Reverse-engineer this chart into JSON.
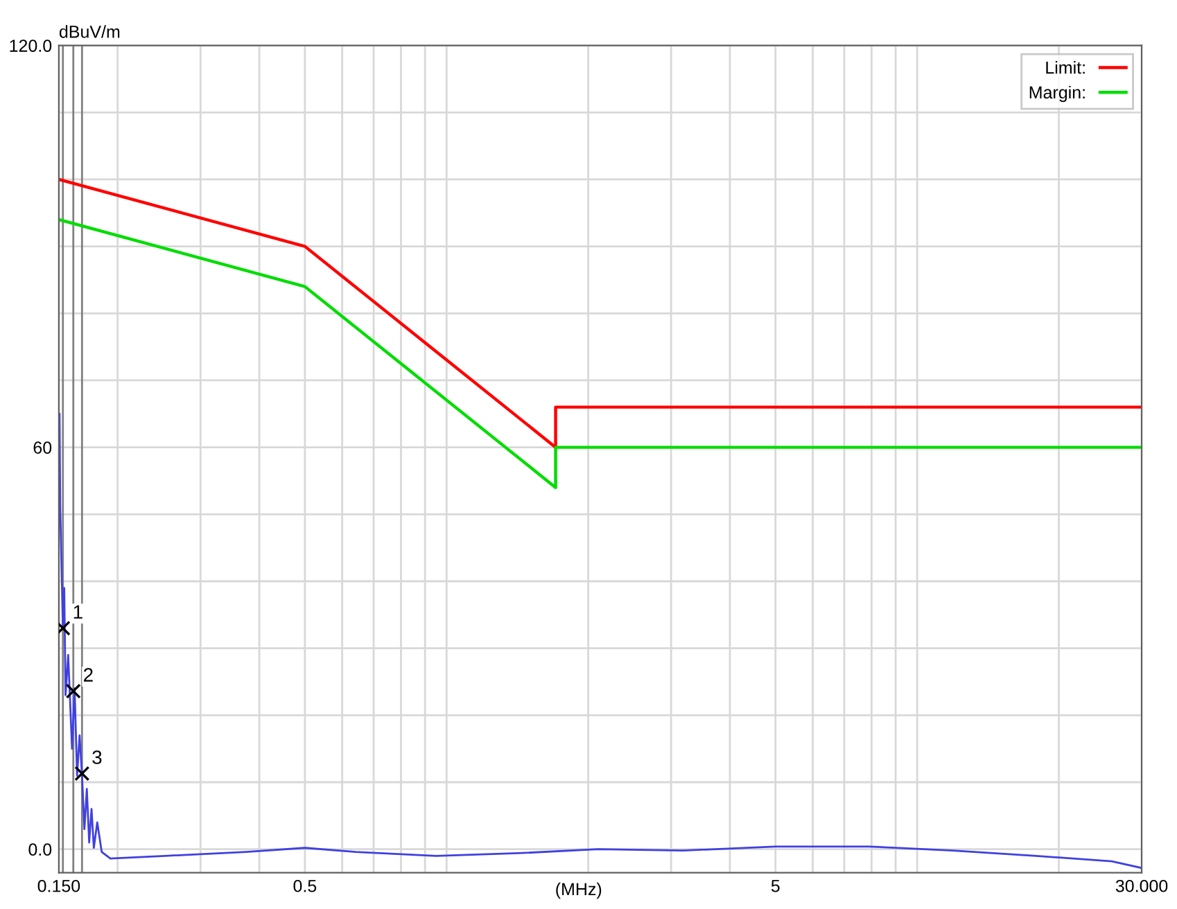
{
  "chart_data": {
    "type": "line",
    "xlabel": "(MHz)",
    "ylabel": "dBuV/m",
    "log": "x",
    "grid": true,
    "legend": "top right",
    "xlim": [
      0.15,
      30
    ],
    "ylim": [
      -3.5,
      120
    ],
    "xticks": [
      {
        "value": 0.15,
        "label": "0.150"
      },
      {
        "value": 0.2,
        "label": null
      },
      {
        "value": 0.3,
        "label": null
      },
      {
        "value": 0.4,
        "label": null
      },
      0.5,
      {
        "value": 0.6,
        "label": null
      },
      {
        "value": 0.7,
        "label": null
      },
      {
        "value": 0.8,
        "label": null
      },
      {
        "value": 0.9,
        "label": null
      },
      {
        "value": 1,
        "label": null
      },
      {
        "value": 2,
        "label": null
      },
      {
        "value": 3,
        "label": null
      },
      {
        "value": 4,
        "label": null
      },
      5,
      {
        "value": 6,
        "label": null
      },
      {
        "value": 7,
        "label": null
      },
      {
        "value": 8,
        "label": null
      },
      {
        "value": 9,
        "label": null
      },
      {
        "value": 10,
        "label": null
      },
      {
        "value": 20,
        "label": null
      },
      {
        "value": 30,
        "label": "30.000"
      }
    ],
    "yticks": [
      {
        "value": 0,
        "label": "0.0"
      },
      {
        "value": 10,
        "label": null
      },
      {
        "value": 20,
        "label": null
      },
      {
        "value": 30,
        "label": null
      },
      {
        "value": 40,
        "label": null
      },
      {
        "value": 50,
        "label": null
      },
      60,
      {
        "value": 70,
        "label": null
      },
      {
        "value": 80,
        "label": null
      },
      {
        "value": 90,
        "label": null
      },
      {
        "value": 100,
        "label": null
      },
      {
        "value": 110,
        "label": null
      },
      {
        "value": 120,
        "label": "120.0"
      }
    ],
    "series": [
      {
        "name": "Limit:",
        "color": "#ff0000",
        "x": [
          0.15,
          0.5,
          1.705,
          1.705,
          30
        ],
        "values": [
          100,
          90,
          60,
          66,
          66
        ]
      },
      {
        "name": "Margin:",
        "color": "#00dd00",
        "x": [
          0.15,
          0.5,
          1.705,
          1.705,
          30
        ],
        "values": [
          94,
          84,
          54,
          60,
          60
        ]
      },
      {
        "color": "#4040e0",
        "x": [
          0.1505,
          0.151,
          0.153,
          0.154,
          0.155,
          0.157,
          0.16,
          0.162,
          0.164,
          0.166,
          0.168,
          0.17,
          0.172,
          0.174,
          0.176,
          0.178,
          0.181,
          0.185,
          0.193,
          0.252,
          0.375,
          0.5,
          0.64,
          0.95,
          1.42,
          2.1,
          3.18,
          5.0,
          7.9,
          11.9,
          17.9,
          25.9,
          30
        ],
        "values": [
          65,
          51,
          33,
          39,
          23,
          29,
          15,
          24,
          11,
          17,
          11,
          3,
          9,
          1,
          6,
          0.2,
          4,
          -0.4,
          -1.4,
          -1,
          -0.4,
          0.2,
          -0.4,
          -1,
          -0.6,
          0,
          -0.2,
          0.4,
          0.4,
          -0.2,
          -1,
          -1.8,
          -2.8
        ]
      },
      {
        "type": "scatter",
        "marker": "cross",
        "color": "#000000",
        "x": [
          0.153,
          0.161,
          0.168
        ],
        "values": [
          33,
          23.6,
          11.3
        ]
      }
    ],
    "ref_lines": [
      {
        "axis": "x",
        "value": 0.153,
        "color": "#808080"
      },
      {
        "axis": "x",
        "value": 0.161,
        "color": "#808080"
      },
      {
        "axis": "x",
        "value": 0.168,
        "color": "#808080"
      }
    ],
    "annotations": [
      {
        "text": "1",
        "x": 0.153,
        "y": 33
      },
      {
        "text": "2",
        "x": 0.161,
        "y": 23.6
      },
      {
        "text": "3",
        "x": 0.168,
        "y": 11.3
      }
    ]
  }
}
